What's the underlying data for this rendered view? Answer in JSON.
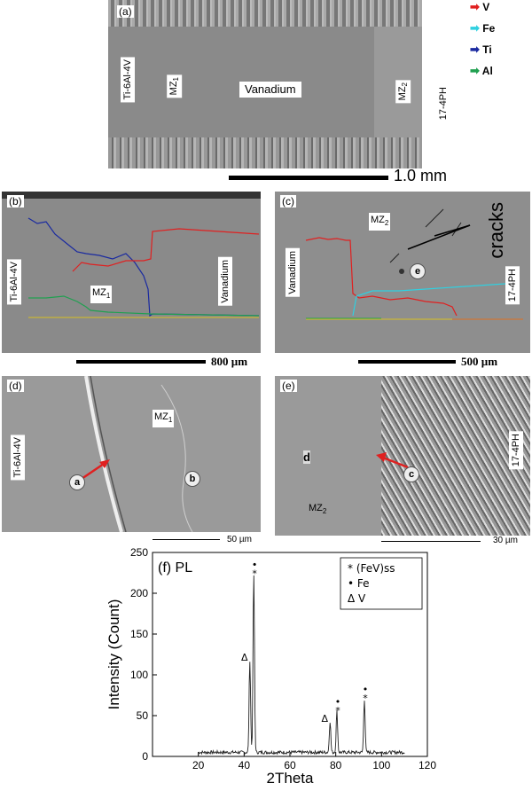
{
  "legend": [
    {
      "label": "V",
      "color": "#e02020"
    },
    {
      "label": "Fe",
      "color": "#30d0e0"
    },
    {
      "label": "Ti",
      "color": "#1a2aa0"
    },
    {
      "label": "Al",
      "color": "#20a050"
    }
  ],
  "panel_a": {
    "label": "(a)",
    "left_alloy": "Ti-6Al-4V",
    "mz1": "MZ",
    "mz1_sub": "1",
    "center": "Vanadium",
    "mz2": "MZ",
    "mz2_sub": "2",
    "right_alloy": "17-4PH",
    "scale": "1.0 mm"
  },
  "panel_b": {
    "label": "(b)",
    "left_alloy": "Ti-6Al-4V",
    "mz1": "MZ",
    "mz1_sub": "1",
    "right": "Vanadium",
    "scale": "800 µm"
  },
  "panel_c": {
    "label": "(c)",
    "mz2": "MZ",
    "mz2_sub": "2",
    "cracks": "cracks",
    "marker": "e",
    "left": "Vanadium",
    "right_alloy": "17-4PH",
    "scale": "500 µm"
  },
  "panel_d": {
    "label": "(d)",
    "mz1": "MZ",
    "mz1_sub": "1",
    "left_alloy": "Ti-6Al-4V",
    "marker_a": "a",
    "marker_b": "b",
    "scale": "50 µm"
  },
  "panel_e": {
    "label": "(e)",
    "marker_d": "d",
    "marker_c": "c",
    "mz2": "MZ",
    "mz2_sub": "2",
    "right_alloy": "17-4PH",
    "scale": "30 µm"
  },
  "chart_data": {
    "type": "line",
    "title": "(f) PL",
    "xlabel": "2Theta",
    "ylabel": "Intensity (Count)",
    "xlim": [
      0,
      120
    ],
    "ylim": [
      0,
      250
    ],
    "xticks": [
      20,
      40,
      60,
      80,
      100,
      120
    ],
    "yticks": [
      0,
      50,
      100,
      150,
      200,
      250
    ],
    "legend": [
      {
        "symbol": "*",
        "label": "(FeV)ss"
      },
      {
        "symbol": "•",
        "label": "Fe"
      },
      {
        "symbol": "Δ",
        "label": "V"
      }
    ],
    "peaks": [
      {
        "x": 42.5,
        "y": 113,
        "marks": "Δ"
      },
      {
        "x": 44.2,
        "y": 218,
        "marks": "•*"
      },
      {
        "x": 77.5,
        "y": 38,
        "marks": "Δ"
      },
      {
        "x": 80.5,
        "y": 50,
        "marks": "•*"
      },
      {
        "x": 92.5,
        "y": 65,
        "marks": "•*"
      }
    ]
  }
}
